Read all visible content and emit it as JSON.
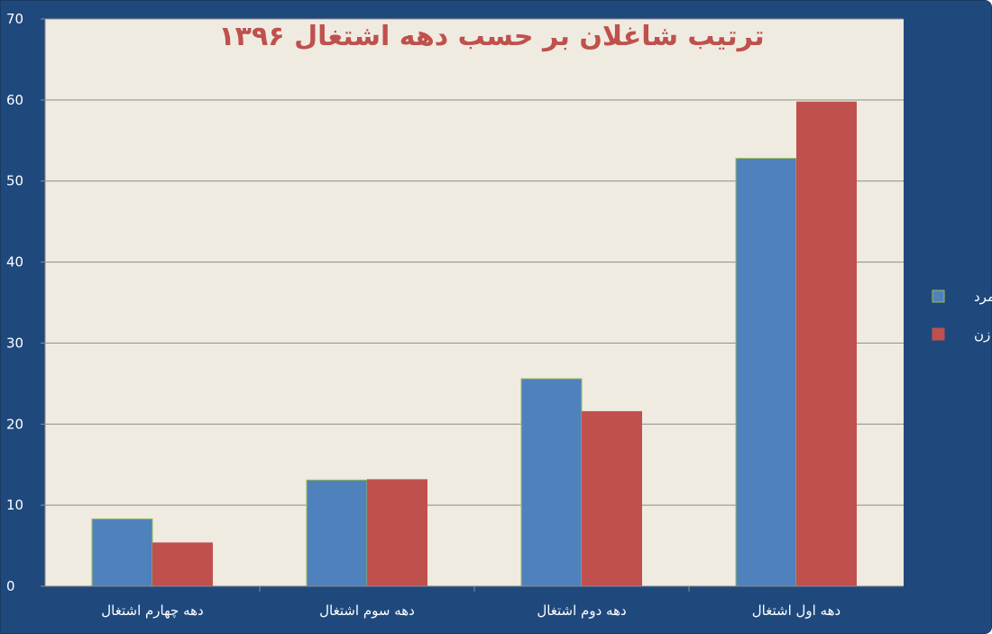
{
  "chart_data": {
    "type": "bar",
    "title": "ترتیب شاغلان بر حسب دهه اشتغال ۱۳۹۶",
    "categories": [
      "دهه چهارم اشتغال",
      "دهه سوم اشتغال",
      "دهه دوم اشتغال",
      "دهه اول اشتغال"
    ],
    "series": [
      {
        "name": "مرد",
        "values": [
          8.3,
          13.1,
          25.6,
          52.8
        ],
        "color": "#4f81bd"
      },
      {
        "name": "زن",
        "values": [
          5.4,
          13.2,
          21.6,
          59.8
        ],
        "color": "#c0504d"
      }
    ],
    "ylim": [
      0,
      70
    ],
    "yticks": [
      0,
      10,
      20,
      30,
      40,
      50,
      60,
      70
    ],
    "grid": true,
    "legend_position": "right",
    "colors": {
      "frame": "#1f497d",
      "plot_bg": "#efebe0",
      "grid": "#8c8c8c"
    }
  }
}
